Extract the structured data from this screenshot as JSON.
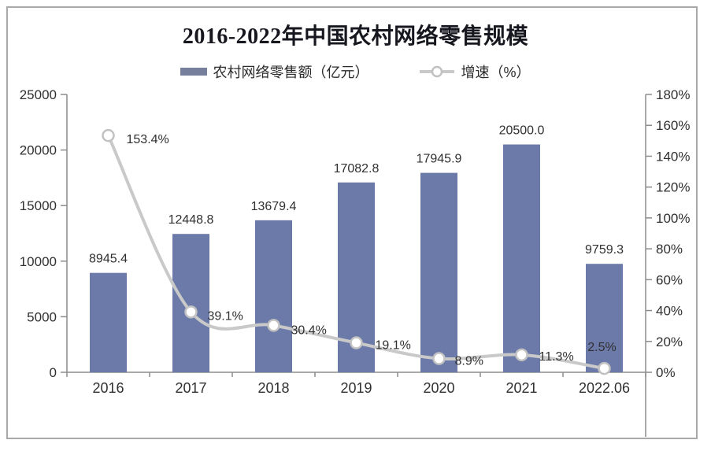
{
  "colors": {
    "bar": "#6b7aa8",
    "legend_bar_swatch": "#76809c",
    "line": "#c9c9c9",
    "marker_fill": "#ffffff",
    "marker_stroke": "#c2c2c2",
    "text": "#303030",
    "title": "#17171f",
    "axis": "#8c8c8c",
    "frame_border": "#a9a9a9"
  },
  "chart_data": {
    "type": "bar+line",
    "title": "2016-2022年中国农村网络零售规模",
    "categories": [
      "2016",
      "2017",
      "2018",
      "2019",
      "2020",
      "2021",
      "2022.06"
    ],
    "series": [
      {
        "name": "农村网络零售额（亿元）",
        "type": "bar",
        "axis": "left",
        "values": [
          8945.4,
          12448.8,
          13679.4,
          17082.8,
          17945.9,
          20500.0,
          9759.3
        ],
        "labels": [
          "8945.4",
          "12448.8",
          "13679.4",
          "17082.8",
          "17945.9",
          "20500.0",
          "9759.3"
        ]
      },
      {
        "name": "增速（%）",
        "type": "line",
        "axis": "right",
        "values": [
          153.4,
          39.1,
          30.4,
          19.1,
          8.9,
          11.3,
          2.5
        ],
        "labels": [
          "153.4%",
          "39.1%",
          "30.4%",
          "19.1%",
          "8.9%",
          "11.3%",
          "2.5%"
        ]
      }
    ],
    "left_axis": {
      "min": 0,
      "max": 25000,
      "step": 5000,
      "tick_labels": [
        "0",
        "5000",
        "10000",
        "15000",
        "20000",
        "25000"
      ]
    },
    "right_axis": {
      "min": 0,
      "max": 180,
      "step": 20,
      "tick_labels": [
        "0%",
        "20%",
        "40%",
        "60%",
        "80%",
        "100%",
        "120%",
        "140%",
        "160%",
        "180%"
      ]
    },
    "legend_position": "top",
    "grid": false
  }
}
